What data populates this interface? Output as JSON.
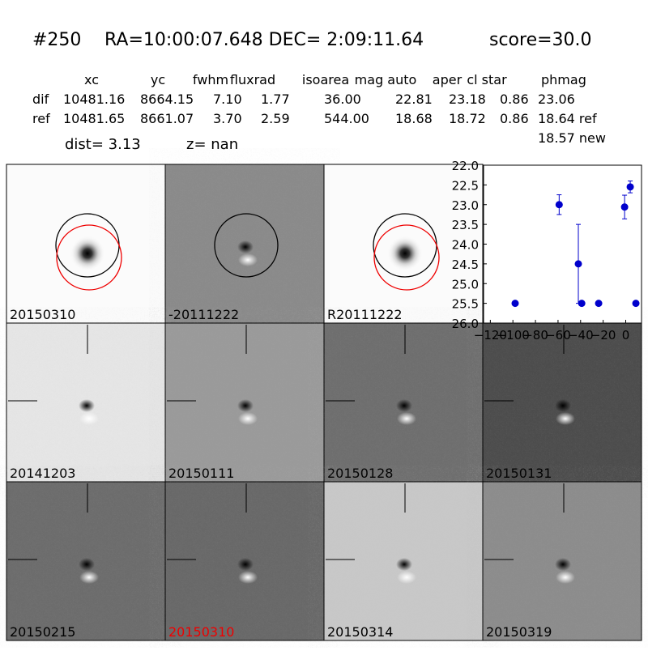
{
  "header": {
    "id": "#250",
    "coords": "RA=10:00:07.648 DEC= 2:09:11.64",
    "score": "score=30.0"
  },
  "table": {
    "columns": [
      "xc",
      "yc",
      "fwhm",
      "fluxrad",
      "isoarea",
      "mag auto",
      "aper",
      "cl star",
      "phmag"
    ],
    "rows": [
      [
        "dif",
        "10481.16",
        "8664.15",
        "7.10",
        "1.77",
        "36.00",
        "22.81",
        "23.18",
        "0.86",
        "23.06"
      ],
      [
        "ref",
        "10481.65",
        "8661.07",
        "3.70",
        "2.59",
        "544.00",
        "18.68",
        "18.72",
        "0.86",
        "18.64 ref"
      ]
    ],
    "extra": "18.57 new",
    "dist": "dist=  3.13",
    "z": "z=   nan"
  },
  "panels": [
    "20150310",
    "-20111222",
    "R20111222",
    "20141203",
    "20150111",
    "20150128",
    "20150131",
    "20150215",
    "20150310",
    "20150314",
    "20150319"
  ],
  "chart_data": {
    "type": "scatter",
    "color": "#0000cc",
    "x": [
      -98,
      -59,
      -42,
      -39,
      -24,
      -1,
      4,
      9
    ],
    "values": [
      25.5,
      23.0,
      24.5,
      25.5,
      25.5,
      23.06,
      22.55,
      25.5
    ],
    "errors": [
      0.05,
      0.25,
      1.0,
      0.05,
      0.05,
      0.3,
      0.15,
      0.05
    ],
    "xlim": [
      -126,
      14
    ],
    "ylim": [
      26.0,
      22.0
    ],
    "xticks": [
      {
        "value": -120,
        "label": "−120"
      },
      {
        "value": -100,
        "label": "−100"
      },
      {
        "value": -80,
        "label": "−80"
      },
      {
        "value": -60,
        "label": "−60"
      },
      {
        "value": -40,
        "label": "−40"
      },
      {
        "value": -20,
        "label": "−20"
      },
      0
    ],
    "yticks": [
      {
        "value": 22,
        "label": "22.0"
      },
      22.5,
      {
        "value": 23,
        "label": "23.0"
      },
      23.5,
      {
        "value": 24,
        "label": "24.0"
      },
      24.5,
      {
        "value": 25,
        "label": "25.0"
      },
      25.5,
      {
        "value": 26,
        "label": "26.0"
      }
    ]
  }
}
